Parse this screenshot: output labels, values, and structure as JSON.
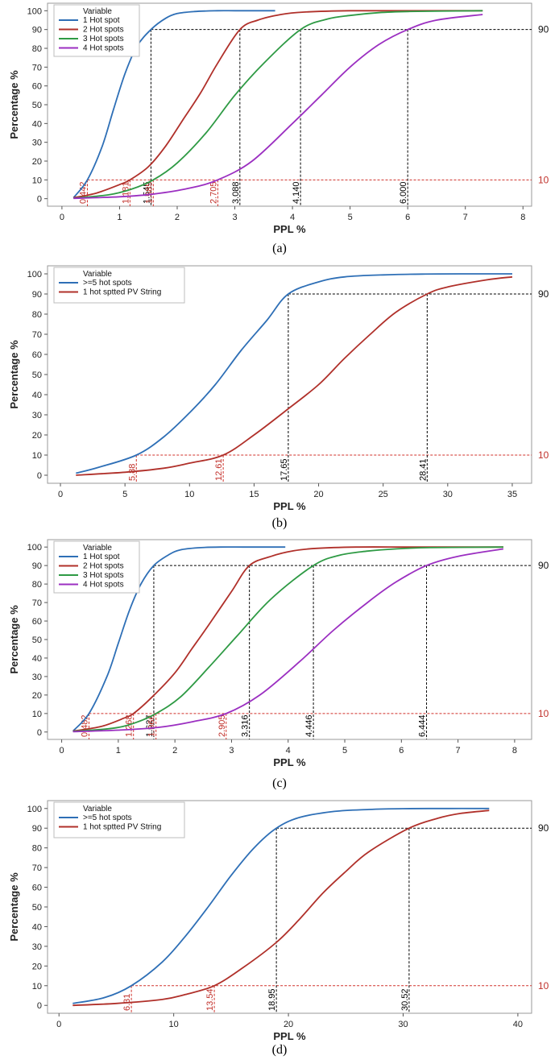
{
  "charts": [
    {
      "caption": "(a)"
    },
    {
      "caption": "(b)"
    },
    {
      "caption": "(c)"
    },
    {
      "caption": "(d)"
    }
  ],
  "chart_data": [
    {
      "type": "line",
      "xlabel": "PPL %",
      "ylabel": "Percentage %",
      "xlim": [
        -0.25,
        8.15
      ],
      "ylim": [
        -4,
        104
      ],
      "xticks": [
        0,
        1,
        2,
        3,
        4,
        5,
        6,
        7,
        8
      ],
      "yticks": [
        0,
        10,
        20,
        30,
        40,
        50,
        60,
        70,
        80,
        90,
        100
      ],
      "legend": {
        "title": "Variable",
        "position": "top-left"
      },
      "ref_lines": [
        {
          "y": 90,
          "label": "90"
        },
        {
          "y": 10,
          "label": "10"
        }
      ],
      "series": [
        {
          "name": "1 Hot spot",
          "color": "#2e6fb6",
          "x": [
            0.2,
            0.442,
            0.7,
            0.9,
            1.1,
            1.3,
            1.545,
            1.8,
            2.0,
            2.3,
            2.7,
            3.0,
            3.4,
            3.7
          ],
          "y": [
            0.5,
            10,
            28,
            48,
            67,
            81,
            90,
            96,
            98.5,
            99.6,
            100,
            100,
            100,
            100
          ]
        },
        {
          "name": "2 Hot spots",
          "color": "#b0302a",
          "x": [
            0.2,
            0.6,
            1.0,
            1.181,
            1.5,
            1.8,
            2.1,
            2.4,
            2.7,
            3.088,
            3.4,
            3.8,
            4.2,
            5.0,
            6.0,
            7.3
          ],
          "y": [
            0.5,
            3,
            7.5,
            10,
            17,
            28,
            42,
            56,
            72,
            90,
            95,
            98,
            99.3,
            100,
            100,
            100
          ]
        },
        {
          "name": "3 Hot spots",
          "color": "#2e9a44",
          "x": [
            0.2,
            0.8,
            1.2,
            1.585,
            2.0,
            2.5,
            3.0,
            3.5,
            4.14,
            4.6,
            5.0,
            5.5,
            6.0,
            7.3
          ],
          "y": [
            0.3,
            2,
            5,
            10,
            19,
            35,
            55,
            72,
            90,
            95.5,
            97.5,
            99,
            99.6,
            100
          ]
        },
        {
          "name": "4 Hot spots",
          "color": "#9b2fc1",
          "x": [
            0.2,
            1.0,
            1.6,
            2.2,
            2.705,
            3.3,
            4.0,
            4.5,
            5.0,
            5.5,
            6.0,
            6.5,
            7.3
          ],
          "y": [
            0.2,
            1,
            2.5,
            5.5,
            10,
            20,
            40,
            55,
            70,
            82,
            90,
            95,
            98
          ]
        }
      ],
      "vlines": [
        {
          "x": 0.442,
          "label": "0.442",
          "color": "#c0302a",
          "to": 10
        },
        {
          "x": 1.181,
          "label": "1.181",
          "color": "#c0302a",
          "to": 10
        },
        {
          "x": 1.545,
          "label": "1.545",
          "color": "#000000",
          "to": 90
        },
        {
          "x": 1.585,
          "label": "1.585",
          "color": "#c0302a",
          "to": 10
        },
        {
          "x": 2.705,
          "label": "2.705",
          "color": "#c0302a",
          "to": 10
        },
        {
          "x": 3.088,
          "label": "3.088",
          "color": "#000000",
          "to": 90
        },
        {
          "x": 4.14,
          "label": "4.140",
          "color": "#000000",
          "to": 90
        },
        {
          "x": 6.0,
          "label": "6.000",
          "color": "#000000",
          "to": 90
        }
      ]
    },
    {
      "type": "line",
      "xlabel": "PPL %",
      "ylabel": "Percentage %",
      "xlim": [
        -1,
        36.5
      ],
      "ylim": [
        -4,
        104
      ],
      "xticks": [
        0,
        5,
        10,
        15,
        20,
        25,
        30,
        35
      ],
      "yticks": [
        0,
        10,
        20,
        30,
        40,
        50,
        60,
        70,
        80,
        90,
        100
      ],
      "legend": {
        "title": "Variable",
        "position": "top-left"
      },
      "ref_lines": [
        {
          "y": 90,
          "label": "90"
        },
        {
          "y": 10,
          "label": "10"
        }
      ],
      "series": [
        {
          "name": ">=5 hot spots",
          "color": "#2e6fb6",
          "x": [
            1.2,
            3,
            5.88,
            8,
            10,
            12,
            14,
            16,
            17.65,
            20,
            22,
            25,
            28,
            31,
            35
          ],
          "y": [
            1,
            4,
            10,
            19,
            31,
            45,
            62,
            77,
            90,
            96,
            98.5,
            99.5,
            99.9,
            100,
            100
          ]
        },
        {
          "name": "1 hot sptted PV String",
          "color": "#b0302a",
          "x": [
            1.2,
            5,
            8,
            10,
            12.61,
            15,
            17.65,
            20,
            22,
            24,
            26,
            28.41,
            30,
            33,
            35
          ],
          "y": [
            0,
            1.5,
            3.5,
            6,
            10,
            20,
            33,
            45,
            58,
            70,
            81,
            90,
            93.5,
            97,
            98.5
          ]
        }
      ],
      "vlines": [
        {
          "x": 5.88,
          "label": "5.88",
          "color": "#c0302a",
          "to": 10
        },
        {
          "x": 12.61,
          "label": "12.61",
          "color": "#c0302a",
          "to": 10
        },
        {
          "x": 17.65,
          "label": "17.65",
          "color": "#000000",
          "to": 90
        },
        {
          "x": 28.41,
          "label": "28.41",
          "color": "#000000",
          "to": 90
        }
      ]
    },
    {
      "type": "line",
      "xlabel": "PPL %",
      "ylabel": "Percentage %",
      "xlim": [
        -0.25,
        8.3
      ],
      "ylim": [
        -4,
        104
      ],
      "xticks": [
        0,
        1,
        2,
        3,
        4,
        5,
        6,
        7,
        8
      ],
      "yticks": [
        0,
        10,
        20,
        30,
        40,
        50,
        60,
        70,
        80,
        90,
        100
      ],
      "legend": {
        "title": "Variable",
        "position": "top-left"
      },
      "ref_lines": [
        {
          "y": 90,
          "label": "90"
        },
        {
          "y": 10,
          "label": "10"
        }
      ],
      "series": [
        {
          "name": "1 Hot spot",
          "color": "#2e6fb6",
          "x": [
            0.2,
            0.482,
            0.8,
            1.0,
            1.2,
            1.4,
            1.627,
            1.9,
            2.1,
            2.4,
            2.8,
            3.2,
            3.6,
            3.95
          ],
          "y": [
            0.5,
            10,
            30,
            48,
            66,
            80,
            90,
            96,
            98.5,
            99.6,
            100,
            100,
            100,
            100
          ]
        },
        {
          "name": "2 Hot spots",
          "color": "#b0302a",
          "x": [
            0.2,
            0.7,
            1.1,
            1.268,
            1.6,
            2.0,
            2.3,
            2.6,
            3.0,
            3.316,
            3.7,
            4.1,
            4.5,
            5.2,
            6.2,
            7.8
          ],
          "y": [
            0.5,
            3,
            7.5,
            10,
            19,
            32,
            45,
            58,
            76,
            90,
            95,
            98,
            99.3,
            100,
            100,
            100
          ]
        },
        {
          "name": "3 Hot spots",
          "color": "#2e9a44",
          "x": [
            0.2,
            0.9,
            1.3,
            1.666,
            2.1,
            2.6,
            3.1,
            3.7,
            4.446,
            4.9,
            5.4,
            5.9,
            6.5,
            7.8
          ],
          "y": [
            0.3,
            2,
            5,
            10,
            19,
            35,
            52,
            72,
            90,
            95.5,
            97.8,
            99,
            99.7,
            100
          ]
        },
        {
          "name": "4 Hot spots",
          "color": "#9b2fc1",
          "x": [
            0.2,
            1.0,
            1.7,
            2.3,
            2.905,
            3.5,
            4.2,
            4.8,
            5.4,
            5.9,
            6.444,
            7.0,
            7.8
          ],
          "y": [
            0.2,
            1,
            2.5,
            5.5,
            10,
            20,
            38,
            55,
            70,
            81,
            90,
            95,
            99
          ]
        }
      ],
      "vlines": [
        {
          "x": 0.482,
          "label": "0.482",
          "color": "#c0302a",
          "to": 10
        },
        {
          "x": 1.268,
          "label": "1.268",
          "color": "#c0302a",
          "to": 10
        },
        {
          "x": 1.627,
          "label": "1.627",
          "color": "#000000",
          "to": 90
        },
        {
          "x": 1.666,
          "label": "1.666",
          "color": "#c0302a",
          "to": 10
        },
        {
          "x": 2.905,
          "label": "2.905",
          "color": "#c0302a",
          "to": 10
        },
        {
          "x": 3.316,
          "label": "3.316",
          "color": "#000000",
          "to": 90
        },
        {
          "x": 4.446,
          "label": "4.446",
          "color": "#000000",
          "to": 90
        },
        {
          "x": 6.444,
          "label": "6.444",
          "color": "#000000",
          "to": 90
        }
      ]
    },
    {
      "type": "line",
      "xlabel": "PPL %",
      "ylabel": "Percentage %",
      "xlim": [
        -1,
        41.2
      ],
      "ylim": [
        -4,
        104
      ],
      "xticks": [
        0,
        10,
        20,
        30,
        40
      ],
      "yticks": [
        0,
        10,
        20,
        30,
        40,
        50,
        60,
        70,
        80,
        90,
        100
      ],
      "legend": {
        "title": "Variable",
        "position": "top-left"
      },
      "ref_lines": [
        {
          "y": 90,
          "label": "90"
        },
        {
          "y": 10,
          "label": "10"
        }
      ],
      "series": [
        {
          "name": ">=5 hot spots",
          "color": "#2e6fb6",
          "x": [
            1.2,
            4,
            6.31,
            9,
            11,
            13,
            15,
            17,
            18.95,
            21,
            24,
            27,
            30,
            34,
            37.5
          ],
          "y": [
            1,
            4,
            10,
            22,
            35,
            50,
            66,
            80,
            90,
            95.5,
            98.5,
            99.5,
            99.9,
            100,
            100
          ]
        },
        {
          "name": "1 hot sptted PV String",
          "color": "#b0302a",
          "x": [
            1.2,
            5,
            9,
            11,
            13.54,
            16,
            18.95,
            21,
            23,
            25,
            27,
            30.52,
            33,
            35,
            37.5
          ],
          "y": [
            0,
            1,
            3,
            5.5,
            10,
            19,
            32,
            44,
            57,
            68,
            78,
            90,
            95,
            97.5,
            99
          ]
        }
      ],
      "vlines": [
        {
          "x": 6.31,
          "label": "6.31",
          "color": "#c0302a",
          "to": 10
        },
        {
          "x": 13.54,
          "label": "13.54",
          "color": "#c0302a",
          "to": 10
        },
        {
          "x": 18.95,
          "label": "18.95",
          "color": "#000000",
          "to": 90
        },
        {
          "x": 30.52,
          "label": "30.52",
          "color": "#000000",
          "to": 90
        }
      ]
    }
  ]
}
